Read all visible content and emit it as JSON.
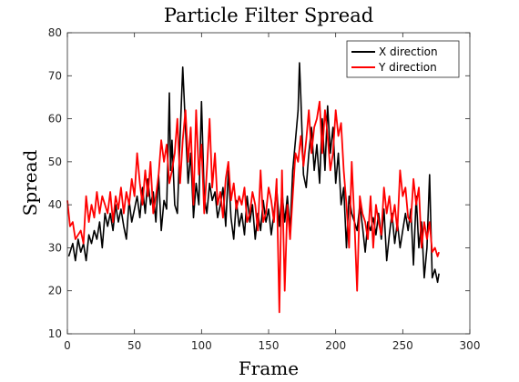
{
  "chart_data": {
    "type": "line",
    "title": "Particle Filter Spread",
    "xlabel": "Frame",
    "ylabel": "Spread",
    "xlim": [
      0,
      300
    ],
    "ylim": [
      10,
      80
    ],
    "xticks": [
      0,
      50,
      100,
      150,
      200,
      250,
      300
    ],
    "yticks": [
      10,
      20,
      30,
      40,
      50,
      60,
      70,
      80
    ],
    "xtick_labels": [
      "0",
      "50",
      "100",
      "150",
      "200",
      "250",
      "300"
    ],
    "ytick_labels": [
      "10",
      "20",
      "30",
      "40",
      "50",
      "60",
      "70",
      "80"
    ],
    "grid": false,
    "legend_position": "top-right",
    "series": [
      {
        "name": "X direction",
        "color": "#000000",
        "x": [
          1,
          4,
          6,
          8,
          10,
          12,
          14,
          16,
          18,
          20,
          22,
          24,
          26,
          28,
          30,
          32,
          34,
          36,
          38,
          40,
          42,
          44,
          46,
          48,
          50,
          52,
          54,
          56,
          58,
          60,
          62,
          64,
          66,
          68,
          70,
          72,
          74,
          75,
          76,
          77,
          78,
          80,
          82,
          84,
          86,
          88,
          90,
          92,
          94,
          96,
          98,
          100,
          102,
          104,
          106,
          108,
          110,
          112,
          114,
          116,
          118,
          120,
          122,
          124,
          126,
          128,
          130,
          132,
          134,
          136,
          138,
          140,
          142,
          144,
          146,
          148,
          150,
          152,
          154,
          156,
          158,
          160,
          162,
          164,
          166,
          168,
          170,
          172,
          173,
          174,
          176,
          178,
          180,
          182,
          184,
          186,
          188,
          190,
          192,
          194,
          196,
          198,
          200,
          202,
          204,
          206,
          208,
          210,
          212,
          214,
          216,
          218,
          220,
          222,
          224,
          226,
          228,
          230,
          232,
          234,
          236,
          238,
          240,
          242,
          244,
          246,
          248,
          250,
          252,
          254,
          256,
          258,
          260,
          262,
          264,
          266,
          268,
          270,
          272,
          274,
          276,
          277
        ],
        "values": [
          28,
          31,
          27,
          32,
          29,
          31,
          27,
          33,
          31,
          34,
          32,
          36,
          30,
          38,
          35,
          38,
          34,
          40,
          36,
          39,
          35,
          32,
          41,
          36,
          39,
          42,
          37,
          44,
          38,
          46,
          40,
          43,
          36,
          47,
          34,
          41,
          39,
          52,
          66,
          48,
          55,
          40,
          38,
          56,
          72,
          58,
          45,
          52,
          37,
          45,
          40,
          64,
          42,
          38,
          45,
          41,
          43,
          37,
          40,
          44,
          35,
          48,
          37,
          32,
          41,
          35,
          38,
          33,
          42,
          36,
          40,
          32,
          38,
          34,
          41,
          36,
          39,
          33,
          38,
          44,
          35,
          43,
          36,
          42,
          34,
          48,
          55,
          62,
          73,
          65,
          47,
          44,
          52,
          58,
          48,
          54,
          45,
          60,
          48,
          63,
          52,
          58,
          45,
          52,
          40,
          44,
          30,
          42,
          38,
          36,
          34,
          40,
          35,
          29,
          36,
          34,
          37,
          33,
          38,
          32,
          39,
          27,
          33,
          38,
          31,
          36,
          30,
          34,
          38,
          34,
          39,
          26,
          42,
          30,
          36,
          23,
          30,
          47,
          23,
          25,
          22,
          24
        ]
      },
      {
        "name": "Y direction",
        "color": "#ff0000",
        "x": [
          0,
          2,
          4,
          6,
          8,
          10,
          12,
          14,
          16,
          18,
          20,
          22,
          24,
          26,
          28,
          30,
          32,
          34,
          36,
          38,
          40,
          42,
          44,
          46,
          48,
          50,
          52,
          54,
          56,
          58,
          60,
          62,
          64,
          66,
          68,
          70,
          72,
          74,
          76,
          78,
          80,
          82,
          84,
          86,
          88,
          90,
          92,
          94,
          96,
          98,
          100,
          102,
          104,
          106,
          108,
          110,
          112,
          114,
          116,
          118,
          120,
          122,
          124,
          126,
          128,
          130,
          132,
          134,
          136,
          138,
          140,
          142,
          144,
          146,
          148,
          150,
          152,
          154,
          156,
          158,
          160,
          162,
          164,
          166,
          168,
          170,
          172,
          174,
          176,
          178,
          180,
          182,
          184,
          186,
          188,
          190,
          192,
          194,
          196,
          198,
          200,
          202,
          204,
          206,
          208,
          210,
          212,
          214,
          216,
          218,
          220,
          222,
          224,
          226,
          228,
          230,
          232,
          234,
          236,
          238,
          240,
          242,
          244,
          246,
          248,
          250,
          252,
          254,
          256,
          258,
          260,
          262,
          264,
          266,
          268,
          270,
          272,
          274,
          276,
          277
        ],
        "values": [
          41,
          35,
          36,
          32,
          33,
          34,
          31,
          42,
          36,
          40,
          37,
          43,
          38,
          42,
          40,
          38,
          43,
          36,
          42,
          39,
          44,
          38,
          43,
          40,
          46,
          42,
          52,
          45,
          40,
          48,
          42,
          50,
          38,
          42,
          47,
          55,
          50,
          54,
          45,
          48,
          52,
          60,
          45,
          55,
          62,
          50,
          58,
          40,
          62,
          47,
          54,
          38,
          48,
          60,
          44,
          52,
          40,
          43,
          37,
          46,
          50,
          41,
          45,
          39,
          42,
          40,
          44,
          36,
          38,
          43,
          40,
          34,
          48,
          36,
          38,
          44,
          41,
          36,
          46,
          15,
          48,
          20,
          40,
          32,
          42,
          52,
          50,
          56,
          49,
          55,
          62,
          52,
          58,
          60,
          64,
          52,
          62,
          56,
          48,
          52,
          62,
          56,
          59,
          48,
          40,
          30,
          50,
          36,
          20,
          42,
          38,
          36,
          32,
          42,
          30,
          40,
          36,
          33,
          44,
          38,
          42,
          36,
          40,
          34,
          48,
          42,
          44,
          37,
          36,
          46,
          40,
          44,
          30,
          36,
          32,
          36,
          29,
          30,
          28,
          29
        ]
      }
    ]
  }
}
